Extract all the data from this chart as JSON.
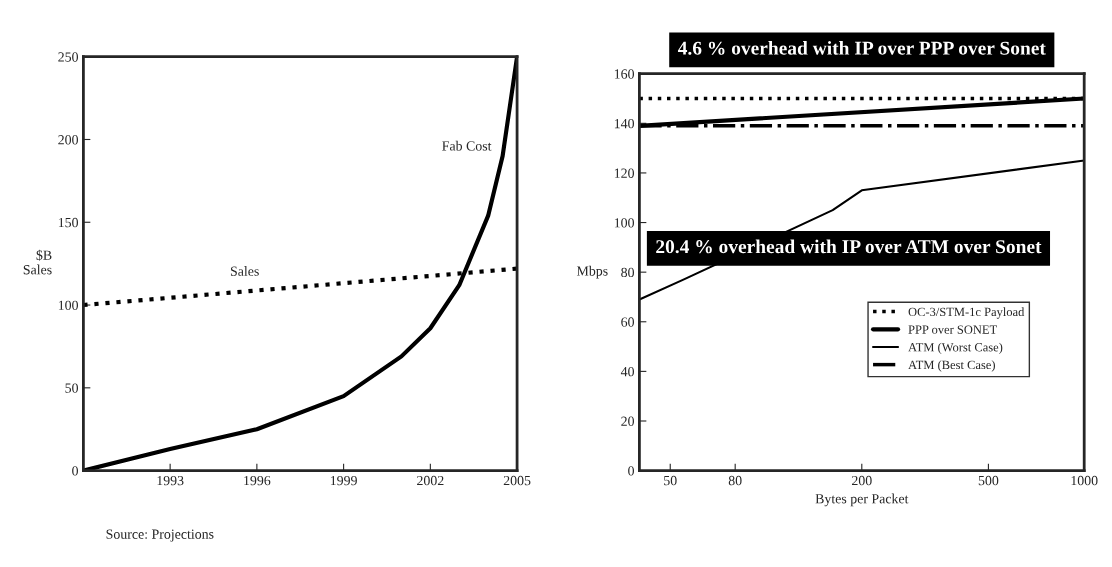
{
  "chart_data": [
    {
      "type": "line",
      "ylabel": "$B\nSales",
      "x": [
        1990,
        1993,
        1996,
        1999,
        2001,
        2002,
        2003,
        2004,
        2004.5,
        2005
      ],
      "series": [
        {
          "type": "line",
          "name": "Fab Cost",
          "color": "#000000",
          "line_style": "solid",
          "values": [
            0,
            13,
            25,
            45,
            69,
            86,
            112,
            154,
            190,
            250
          ]
        },
        {
          "type": "line",
          "name": "Sales",
          "color": "#000000",
          "line_style": "dotted",
          "x": [
            1990,
            2005
          ],
          "values": [
            100,
            122
          ]
        }
      ],
      "xlim": [
        1990,
        2005
      ],
      "xticks": [
        1993,
        1996,
        1999,
        2002,
        2005
      ],
      "ylim": [
        0,
        250
      ],
      "yticks": [
        0,
        50,
        100,
        150,
        200,
        250
      ],
      "annotations": [
        "Source: Projections"
      ],
      "grid": false,
      "legend": false
    },
    {
      "type": "line",
      "xlabel": "Bytes per Packet",
      "ylabel": "Mbps",
      "log": "x",
      "series": [
        {
          "name": "OC-3/STM-1c Payload",
          "color": "#000000",
          "line_style": "dotted",
          "x": [
            40,
            1000
          ],
          "values": [
            150,
            150
          ]
        },
        {
          "name": "PPP over SONET",
          "color": "#000000",
          "line_style": "solid",
          "x": [
            40,
            1000
          ],
          "values": [
            139,
            150
          ]
        },
        {
          "name": "ATM (Worst Case)",
          "color": "#000000",
          "line_style": "solid",
          "x": [
            40,
            55,
            162,
            200,
            1000
          ],
          "values": [
            69,
            77,
            105,
            113,
            125
          ]
        },
        {
          "name": "ATM (Best Case)",
          "color": "#000000",
          "line_style": "dashdot",
          "x": [
            40,
            1000
          ],
          "values": [
            139,
            139
          ]
        }
      ],
      "xlim": [
        40,
        1000
      ],
      "xticks": [
        50,
        80,
        200,
        500,
        1000
      ],
      "ylim": [
        0,
        160
      ],
      "yticks": [
        0,
        20,
        40,
        60,
        80,
        100,
        120,
        140,
        160
      ],
      "annotations": [
        "4.6 % overhead with IP over PPP over Sonet",
        "20.4 % overhead with IP over ATM over Sonet"
      ],
      "grid": false,
      "legend": "right"
    }
  ]
}
